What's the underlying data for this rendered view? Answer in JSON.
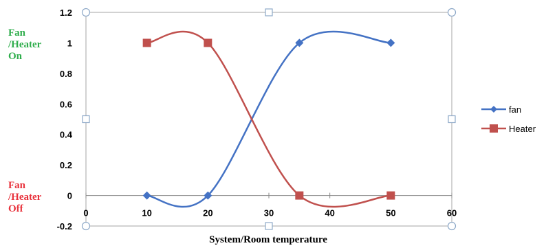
{
  "chart_data": {
    "type": "line",
    "xlabel": "System/Room temperature",
    "ylabel": "",
    "xlim": [
      0,
      60
    ],
    "ylim": [
      -0.2,
      1.2
    ],
    "x_ticks": [
      "0",
      "10",
      "20",
      "30",
      "40",
      "50",
      "60"
    ],
    "y_ticks": [
      "1.2",
      "1",
      "0.8",
      "0.6",
      "0.4",
      "0.2",
      "0",
      "-0.2"
    ],
    "grid": false,
    "smooth": true,
    "legend_position": "right",
    "series": [
      {
        "name": "fan",
        "color": "#4472C4",
        "marker": "diamond",
        "x": [
          10,
          20,
          35,
          50
        ],
        "y": [
          0,
          0,
          1,
          1
        ]
      },
      {
        "name": "Heater",
        "color": "#C0504D",
        "marker": "square",
        "x": [
          10,
          20,
          35,
          50
        ],
        "y": [
          1,
          1,
          0,
          0
        ]
      }
    ]
  },
  "annotations": {
    "on_label": {
      "text": "Fan\n/Heater\nOn",
      "color": "#2EAD4B"
    },
    "off_label": {
      "text": "Fan\n/Heater\nOff",
      "color": "#E8323C"
    }
  }
}
